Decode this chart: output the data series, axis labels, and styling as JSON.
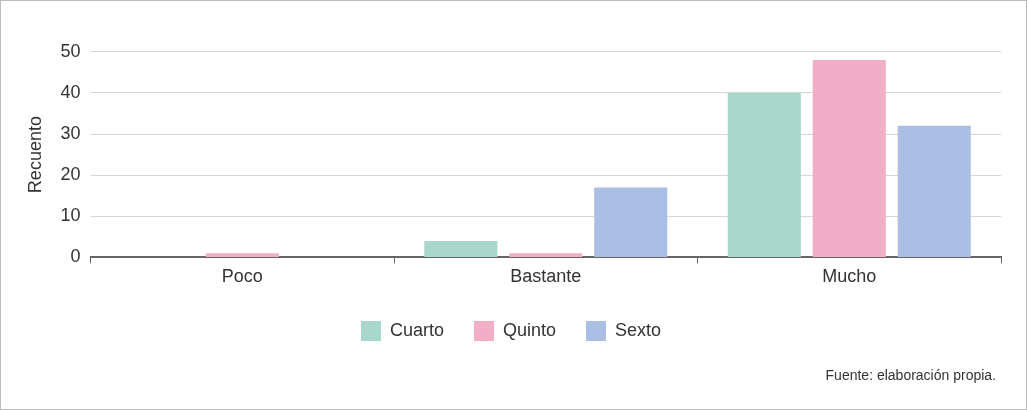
{
  "chart_data": {
    "type": "bar",
    "ylabel": "Recuento",
    "categories": [
      "Poco",
      "Bastante",
      "Mucho"
    ],
    "series": [
      {
        "name": "Cuarto",
        "color": "#a7d8cb",
        "values": [
          0,
          4,
          40
        ]
      },
      {
        "name": "Quinto",
        "color": "#f1aec6",
        "values": [
          1,
          1,
          48
        ]
      },
      {
        "name": "Sexto",
        "color": "#abbfe5",
        "values": [
          0,
          17,
          32
        ]
      }
    ],
    "ylim": [
      0,
      50
    ],
    "yticks": [
      0,
      10,
      20,
      30,
      40,
      50
    ],
    "grid": "y",
    "legend": "bottom",
    "annotations": [
      "Fuente: elaboración propia."
    ]
  }
}
